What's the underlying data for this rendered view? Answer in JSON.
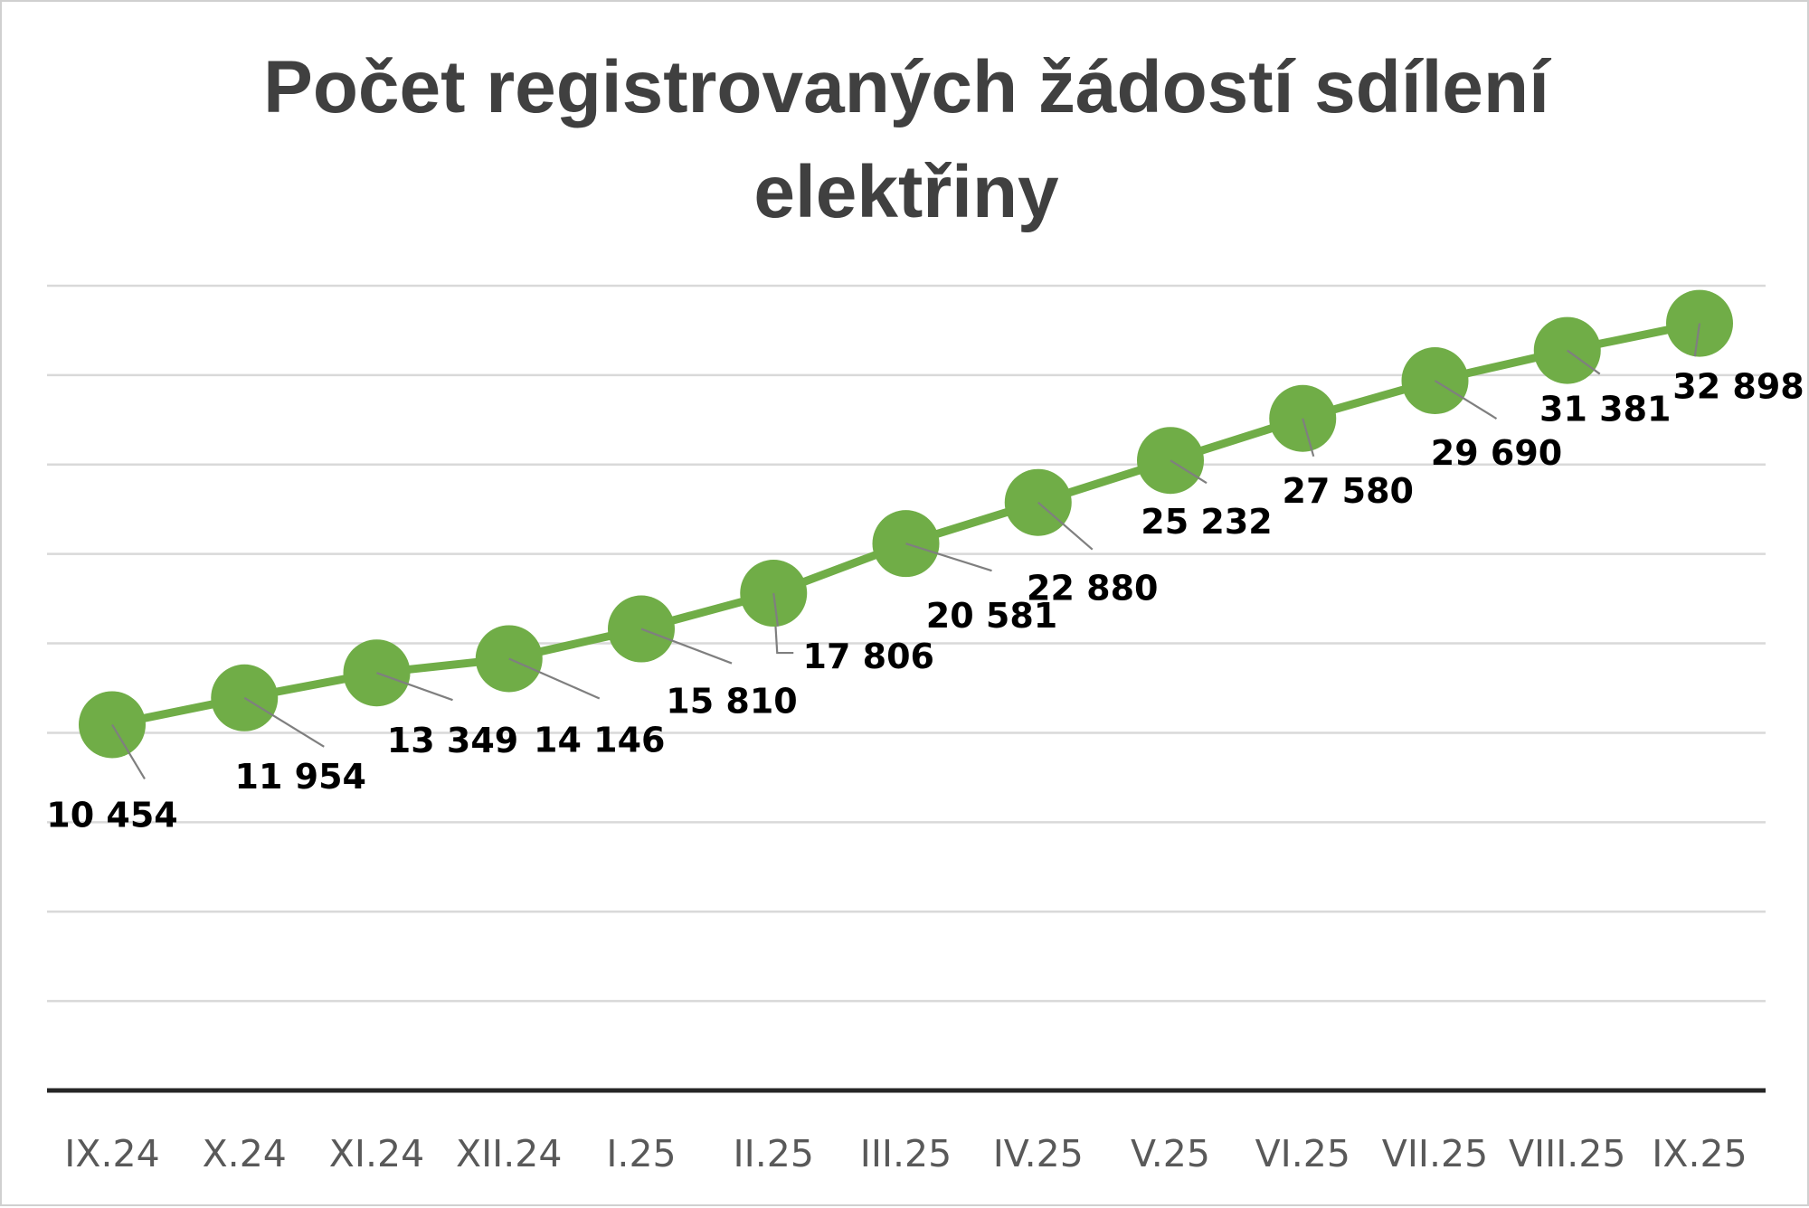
{
  "chart_data": {
    "type": "line",
    "title": "Počet registrovaných žádostí sdílení elektřiny",
    "title_lines": [
      "Počet registrovaných žádostí sdílení",
      "elektřiny"
    ],
    "categories": [
      "IX.24",
      "X.24",
      "XI.24",
      "XII.24",
      "I.25",
      "II.25",
      "III.25",
      "IV.25",
      "V.25",
      "VI.25",
      "VII.25",
      "VIII.25",
      "IX.25"
    ],
    "series": [
      {
        "values": [
          10454,
          11954,
          13349,
          14146,
          15810,
          17806,
          20581,
          22880,
          25232,
          27580,
          29690,
          31381,
          32898
        ],
        "labels": [
          "10 454",
          "11 954",
          "13 349",
          "14 146",
          "15 810",
          "17 806",
          "20 581",
          "22 880",
          "25 232",
          "27 580",
          "29 690",
          "31 381",
          "32 898"
        ]
      }
    ],
    "xlabel": "",
    "ylabel": "",
    "ylim": [
      -10000,
      35000
    ],
    "y_gridlines": [
      -5000,
      0,
      5000,
      10000,
      15000,
      20000,
      25000,
      30000,
      35000
    ],
    "y_tick_labels_shown": false,
    "legend": "none",
    "grid": true,
    "colors": {
      "line": "#70ad47",
      "marker": "#70ad47",
      "gridline": "#d9d9d9",
      "axis": "#262626",
      "leader": "#7f7f7f",
      "title": "#404040",
      "tick_label": "#595959",
      "data_label": "#000000"
    }
  }
}
